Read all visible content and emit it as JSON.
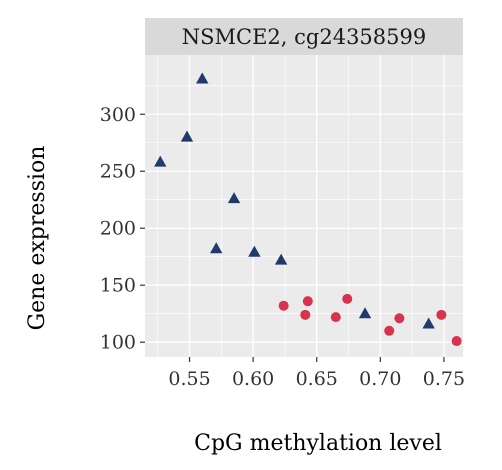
{
  "chart_data": {
    "type": "scatter",
    "panel_title": "NSMCE2, cg24358599",
    "xlabel": "CpG methylation level",
    "ylabel": "Gene expression",
    "xlim": [
      0.515,
      0.765
    ],
    "ylim": [
      87,
      352
    ],
    "xticks": [
      0.55,
      0.6,
      0.65,
      0.7,
      0.75
    ],
    "xtick_labels": [
      "0.55",
      "0.60",
      "0.65",
      "0.70",
      "0.75"
    ],
    "yticks": [
      100,
      150,
      200,
      250,
      300
    ],
    "ytick_labels": [
      "100",
      "150",
      "200",
      "250",
      "300"
    ],
    "grid": true,
    "legend": "none",
    "series": [
      {
        "marker": "triangle",
        "color": "#1f3a6b",
        "points": [
          {
            "x": 0.527,
            "y": 258
          },
          {
            "x": 0.548,
            "y": 280
          },
          {
            "x": 0.56,
            "y": 331
          },
          {
            "x": 0.571,
            "y": 182
          },
          {
            "x": 0.585,
            "y": 226
          },
          {
            "x": 0.601,
            "y": 179
          },
          {
            "x": 0.622,
            "y": 172
          },
          {
            "x": 0.688,
            "y": 125
          },
          {
            "x": 0.738,
            "y": 116
          }
        ]
      },
      {
        "marker": "circle",
        "color": "#d8324d",
        "points": [
          {
            "x": 0.624,
            "y": 132
          },
          {
            "x": 0.641,
            "y": 124
          },
          {
            "x": 0.643,
            "y": 136
          },
          {
            "x": 0.665,
            "y": 122
          },
          {
            "x": 0.674,
            "y": 138
          },
          {
            "x": 0.707,
            "y": 110
          },
          {
            "x": 0.715,
            "y": 121
          },
          {
            "x": 0.748,
            "y": 124
          },
          {
            "x": 0.76,
            "y": 101
          }
        ]
      }
    ]
  }
}
